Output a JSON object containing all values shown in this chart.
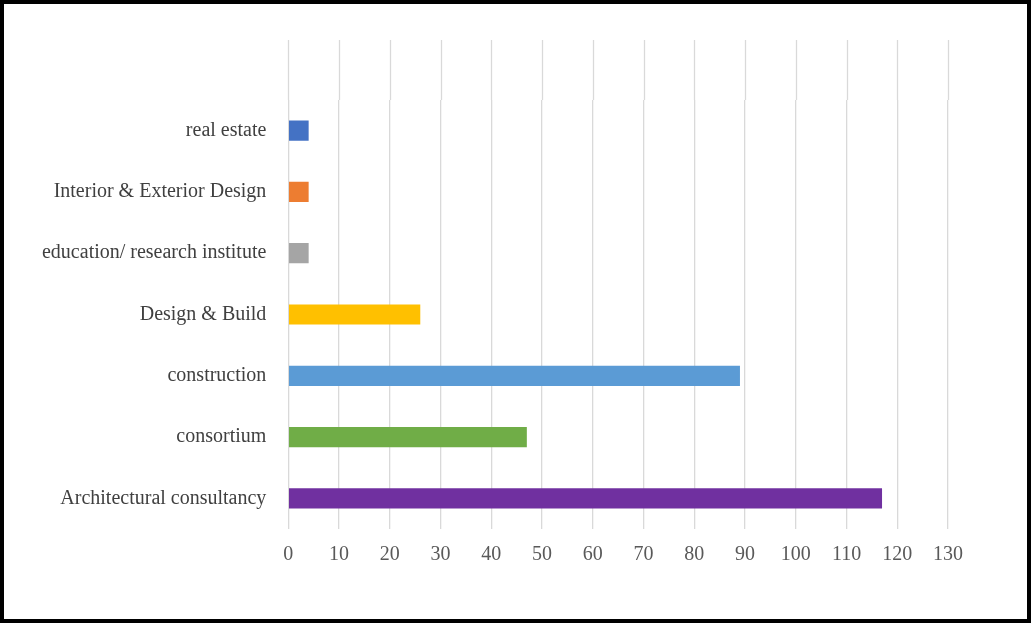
{
  "chart_data": {
    "type": "bar",
    "orientation": "horizontal",
    "categories": [
      "real estate",
      "Interior & Exterior Design",
      "education/ research institute",
      "Design & Build",
      "construction",
      "consortium",
      "Architectural consultancy"
    ],
    "values": [
      4,
      4,
      4,
      26,
      89,
      47,
      117
    ],
    "colors": [
      "#4472c4",
      "#ed7d31",
      "#a5a5a5",
      "#ffc000",
      "#5b9bd5",
      "#70ad47",
      "#7030a0"
    ],
    "xlim": [
      0,
      130
    ],
    "xticks": [
      0,
      10,
      20,
      30,
      40,
      50,
      60,
      70,
      80,
      90,
      100,
      110,
      120,
      130
    ],
    "grid": "x",
    "legend": false
  }
}
